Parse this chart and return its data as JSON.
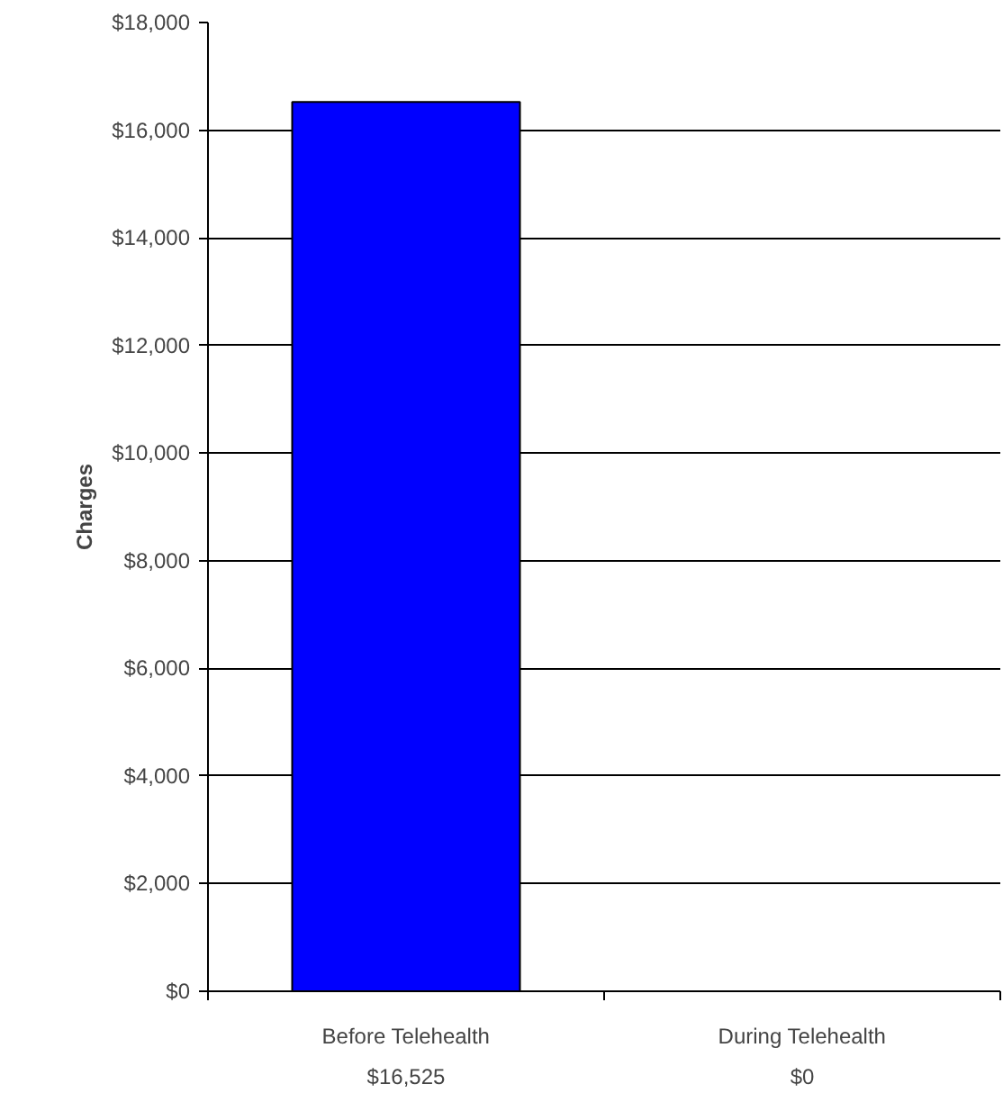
{
  "chart_data": {
    "type": "bar",
    "ylabel": "Charges",
    "categories": [
      "Before Telehealth",
      "During Telehealth"
    ],
    "values": [
      16525,
      0
    ],
    "value_labels": [
      "$16,525",
      "$0"
    ],
    "color": "#0000ff",
    "ylim": [
      0,
      18000
    ],
    "yticks": [
      {
        "value": 0,
        "label": "$0"
      },
      {
        "value": 2000,
        "label": "$2,000"
      },
      {
        "value": 4000,
        "label": "$4,000"
      },
      {
        "value": 6000,
        "label": "$6,000"
      },
      {
        "value": 8000,
        "label": "$8,000"
      },
      {
        "value": 10000,
        "label": "$10,000"
      },
      {
        "value": 12000,
        "label": "$12,000"
      },
      {
        "value": 14000,
        "label": "$14,000"
      },
      {
        "value": 16000,
        "label": "$16,000"
      },
      {
        "value": 18000,
        "label": "$18,000"
      }
    ],
    "grid": "y"
  }
}
